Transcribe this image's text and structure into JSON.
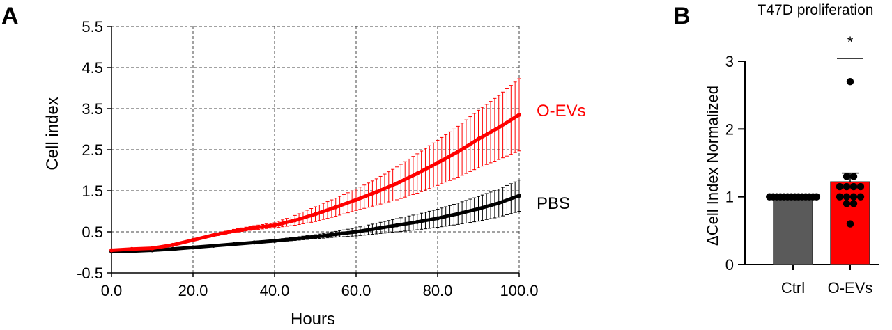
{
  "chart_data": [
    {
      "panel_label": "A",
      "type": "line",
      "title": "",
      "xlabel": "Hours",
      "ylabel": "Cell index",
      "xlim": [
        0,
        100
      ],
      "ylim": [
        -0.5,
        5.5
      ],
      "grid": true,
      "xticks": [
        0,
        20,
        40,
        60,
        80,
        100
      ],
      "xtick_labels": [
        "0.0",
        "20.0",
        "40.0",
        "60.0",
        "80.0",
        "100.0"
      ],
      "yticks": [
        -0.5,
        0.5,
        1.5,
        2.5,
        3.5,
        4.5,
        5.5
      ],
      "ytick_labels": [
        "-0.5",
        "0.5",
        "1.5",
        "2.5",
        "3.5",
        "4.5",
        "5.5"
      ],
      "series": [
        {
          "name": "O-EVs",
          "color": "#ff0000",
          "x": [
            0,
            5,
            10,
            15,
            20,
            25,
            30,
            35,
            40,
            45,
            50,
            55,
            60,
            65,
            70,
            75,
            80,
            85,
            90,
            95,
            100
          ],
          "values": [
            0.05,
            0.08,
            0.1,
            0.18,
            0.3,
            0.42,
            0.52,
            0.6,
            0.66,
            0.78,
            0.93,
            1.1,
            1.28,
            1.47,
            1.68,
            1.92,
            2.18,
            2.45,
            2.76,
            3.04,
            3.35
          ],
          "error": [
            0.01,
            0.01,
            0.01,
            0.02,
            0.02,
            0.03,
            0.04,
            0.05,
            0.06,
            0.12,
            0.18,
            0.22,
            0.26,
            0.32,
            0.4,
            0.48,
            0.55,
            0.62,
            0.7,
            0.78,
            0.88
          ]
        },
        {
          "name": "PBS",
          "color": "#000000",
          "x": [
            0,
            5,
            10,
            15,
            20,
            25,
            30,
            35,
            40,
            45,
            50,
            55,
            60,
            65,
            70,
            75,
            80,
            85,
            90,
            95,
            100
          ],
          "values": [
            0.02,
            0.03,
            0.05,
            0.08,
            0.12,
            0.16,
            0.2,
            0.24,
            0.28,
            0.33,
            0.38,
            0.44,
            0.5,
            0.58,
            0.66,
            0.74,
            0.83,
            0.94,
            1.06,
            1.2,
            1.38
          ],
          "error": [
            0.01,
            0.01,
            0.01,
            0.01,
            0.01,
            0.02,
            0.02,
            0.02,
            0.03,
            0.04,
            0.05,
            0.07,
            0.1,
            0.13,
            0.16,
            0.19,
            0.22,
            0.26,
            0.3,
            0.34,
            0.38
          ]
        }
      ]
    },
    {
      "panel_label": "B",
      "type": "bar",
      "title": "T47D proliferation",
      "xlabel": "",
      "ylabel": "ΔCell Index Normalized",
      "ylim": [
        0,
        3
      ],
      "grid": false,
      "yticks": [
        0,
        1,
        2,
        3
      ],
      "categories": [
        "Ctrl",
        "O-EVs"
      ],
      "values": [
        1.0,
        1.22
      ],
      "error": [
        0.0,
        0.13
      ],
      "colors": [
        "#5a5a5a",
        "#ff0000"
      ],
      "points": [
        [
          1,
          1,
          1,
          1,
          1,
          1,
          1,
          1,
          1,
          1,
          1,
          1,
          1,
          1
        ],
        [
          2.7,
          1.3,
          1.3,
          1.15,
          1.15,
          1.15,
          1.15,
          1.0,
          1.0,
          1.0,
          1.0,
          0.9,
          0.9,
          0.6
        ]
      ],
      "significance": "*"
    }
  ]
}
